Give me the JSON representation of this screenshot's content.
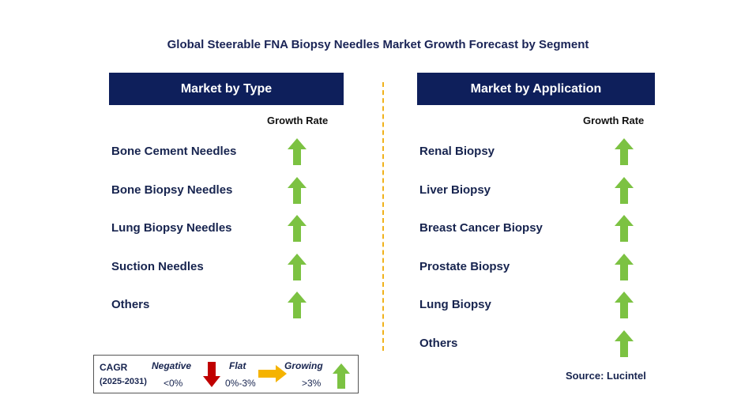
{
  "title": "Global Steerable FNA Biopsy Needles Market Growth Forecast by Segment",
  "colors": {
    "header_bg": "#0e1f5b",
    "growing_arrow": "#7cc242",
    "negative_arrow": "#c00000",
    "flat_arrow": "#f5b300",
    "divider": "#f0b21c"
  },
  "chart_data": [
    {
      "type": "table",
      "title": "Market by Type",
      "column_header": "Growth Rate",
      "rows": [
        {
          "label": "Bone Cement Needles",
          "trend": "growing"
        },
        {
          "label": "Bone Biopsy Needles",
          "trend": "growing"
        },
        {
          "label": "Lung Biopsy Needles",
          "trend": "growing"
        },
        {
          "label": "Suction Needles",
          "trend": "growing"
        },
        {
          "label": "Others",
          "trend": "growing"
        }
      ]
    },
    {
      "type": "table",
      "title": "Market by Application",
      "column_header": "Growth Rate",
      "rows": [
        {
          "label": "Renal Biopsy",
          "trend": "growing"
        },
        {
          "label": "Liver Biopsy",
          "trend": "growing"
        },
        {
          "label": "Breast Cancer Biopsy",
          "trend": "growing"
        },
        {
          "label": "Prostate Biopsy",
          "trend": "growing"
        },
        {
          "label": "Lung Biopsy",
          "trend": "growing"
        },
        {
          "label": "Others",
          "trend": "growing"
        }
      ]
    }
  ],
  "legend": {
    "cagr_label": "CAGR",
    "period": "(2025-2031)",
    "negative_label": "Negative",
    "negative_range": "<0%",
    "flat_label": "Flat",
    "flat_range": "0%-3%",
    "growing_label": "Growing",
    "growing_range": ">3%"
  },
  "source": "Source: Lucintel"
}
